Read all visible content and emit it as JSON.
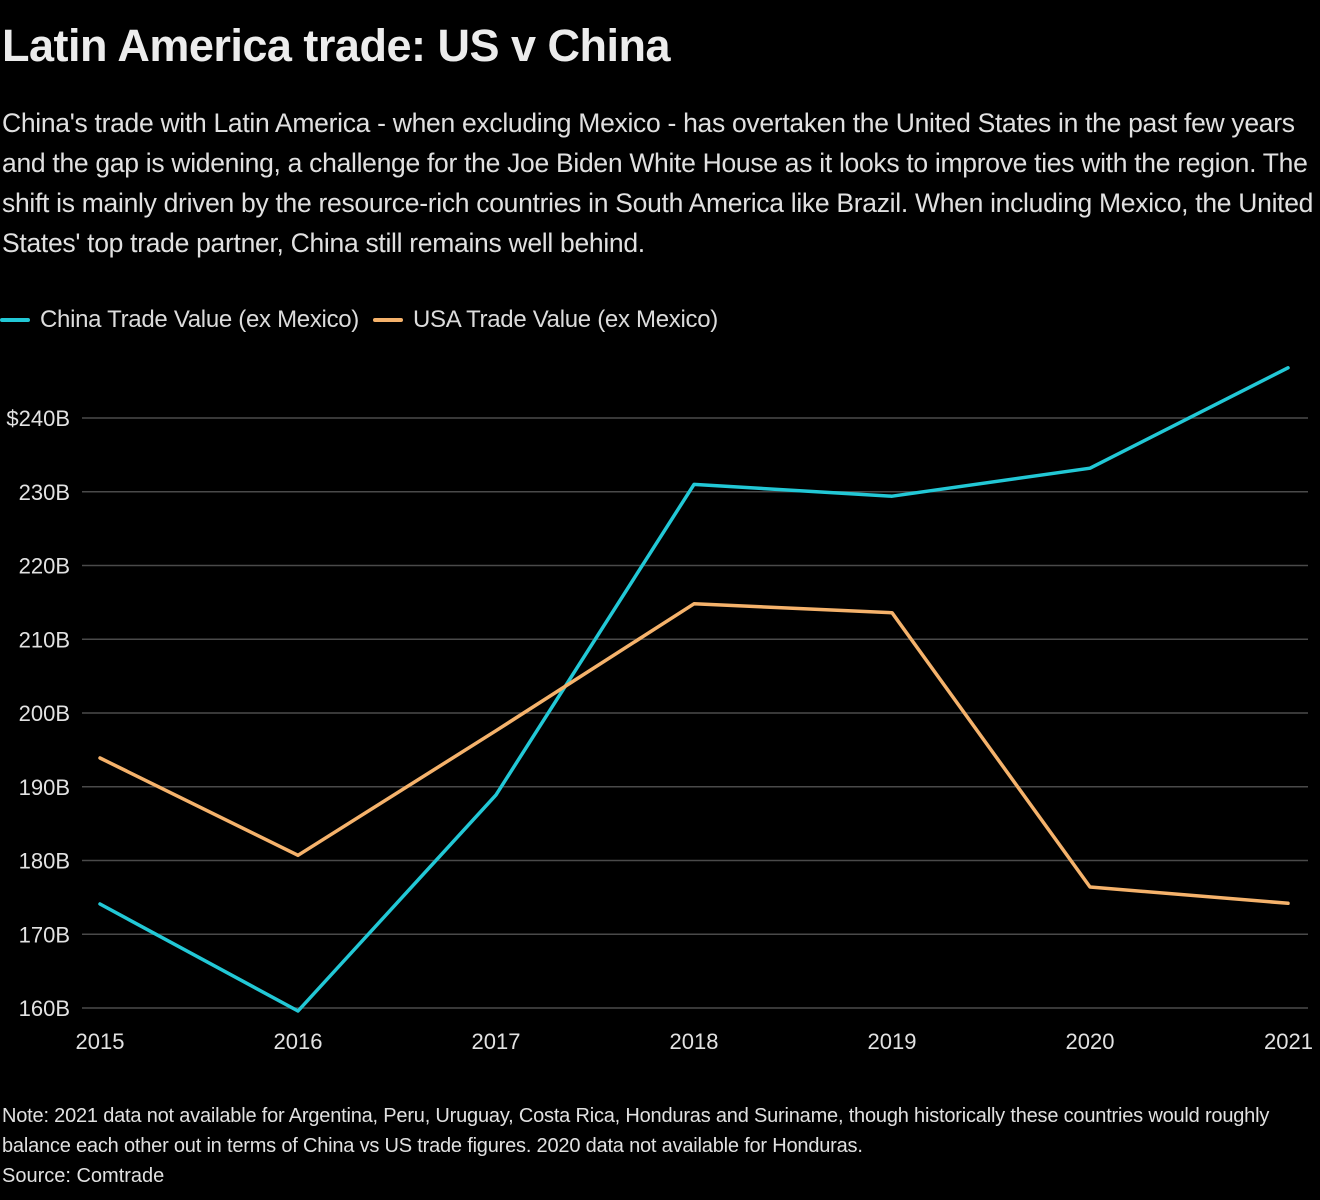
{
  "title": "Latin America trade: US v China",
  "subtitle": "China's trade with Latin America - when excluding Mexico - has overtaken the United States in the past few years and the gap is widening, a challenge for the Joe Biden White House as it looks to improve ties with the region. The shift is mainly driven by the resource-rich countries in South America like Brazil. When including Mexico, the United States' top trade partner, China still remains well behind.",
  "legend": [
    {
      "label": "China Trade Value (ex Mexico)",
      "color": "#22c8d6"
    },
    {
      "label": "USA Trade Value (ex Mexico)",
      "color": "#f5b26b"
    }
  ],
  "note": "Note: 2021 data not available for Argentina, Peru, Uruguay, Costa Rica, Honduras and Suriname, though historically these countries would roughly balance each other out in terms of China vs US trade figures. 2020 data not available for Honduras.",
  "source": "Source: Comtrade",
  "chart_data": {
    "type": "line",
    "title": "Latin America trade: US v China",
    "xlabel": "",
    "ylabel": "",
    "x": [
      "2015",
      "2016",
      "2017",
      "2018",
      "2019",
      "2020",
      "2021"
    ],
    "series": [
      {
        "name": "China Trade Value (ex Mexico)",
        "color": "#22c8d6",
        "values": [
          174.1,
          159.6,
          188.9,
          231.0,
          229.4,
          233.2,
          246.8
        ]
      },
      {
        "name": "USA Trade Value (ex Mexico)",
        "color": "#f5b26b",
        "values": [
          193.9,
          180.7,
          197.6,
          214.8,
          213.6,
          176.4,
          174.2
        ]
      }
    ],
    "ylim": [
      160,
      240
    ],
    "yticks": [
      160,
      170,
      180,
      190,
      200,
      210,
      220,
      230,
      240
    ],
    "ytick_labels": [
      "160B",
      "170B",
      "180B",
      "190B",
      "200B",
      "210B",
      "220B",
      "230B",
      "$240B"
    ],
    "units": "USD billions",
    "grid": true,
    "legend_position": "top-left"
  }
}
